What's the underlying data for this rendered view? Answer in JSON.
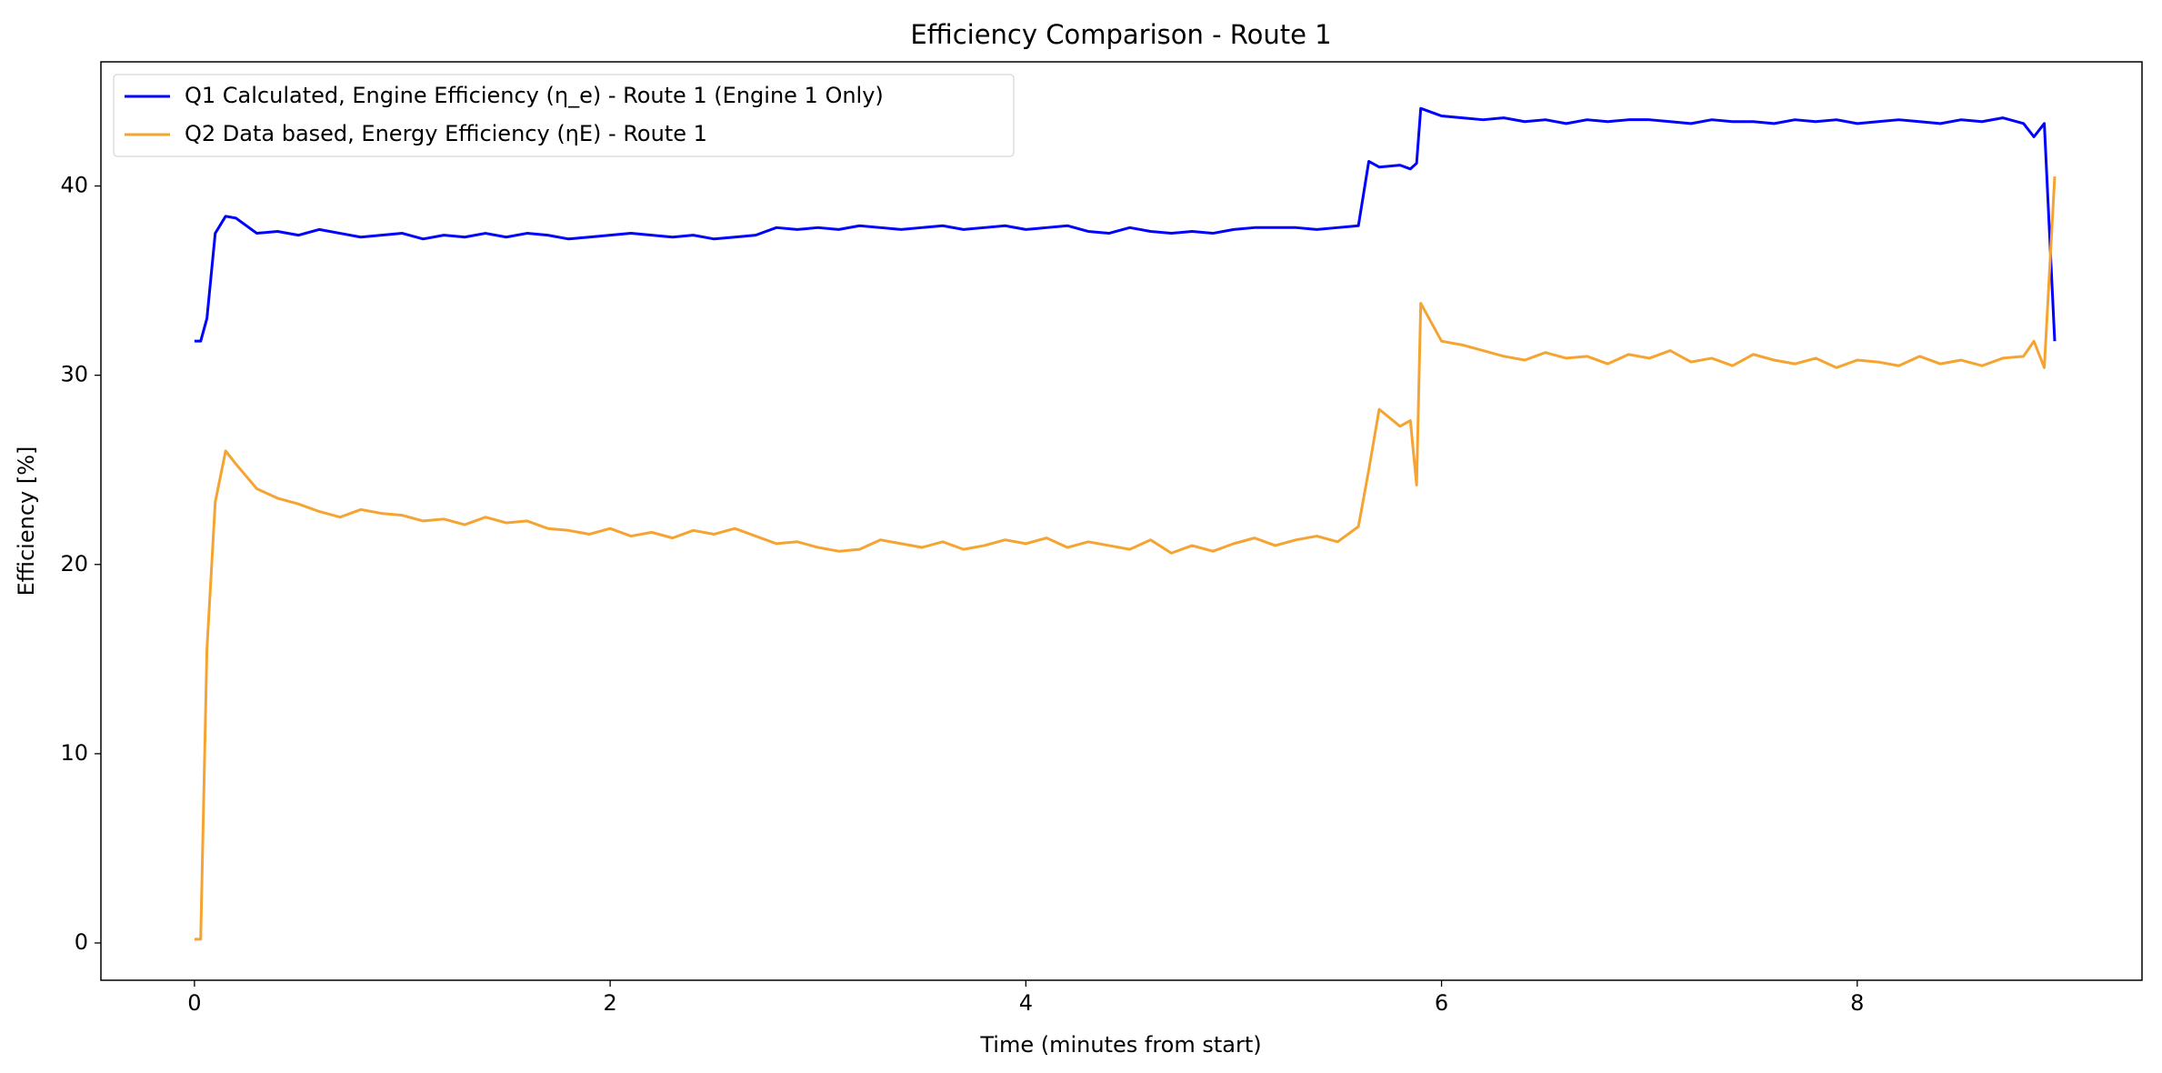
{
  "chart_data": {
    "type": "line",
    "title": "Efficiency Comparison - Route 1",
    "xlabel": "Time (minutes from start)",
    "ylabel": "Efficiency [%]",
    "x": [
      0,
      0.03,
      0.06,
      0.1,
      0.15,
      0.2,
      0.3,
      0.4,
      0.5,
      0.6,
      0.7,
      0.8,
      0.9,
      1.0,
      1.1,
      1.2,
      1.3,
      1.4,
      1.5,
      1.6,
      1.7,
      1.8,
      1.9,
      2.0,
      2.1,
      2.2,
      2.3,
      2.4,
      2.5,
      2.6,
      2.7,
      2.8,
      2.9,
      3.0,
      3.1,
      3.2,
      3.3,
      3.4,
      3.5,
      3.6,
      3.7,
      3.8,
      3.9,
      4.0,
      4.1,
      4.2,
      4.3,
      4.4,
      4.5,
      4.6,
      4.7,
      4.8,
      4.9,
      5.0,
      5.1,
      5.2,
      5.3,
      5.4,
      5.5,
      5.6,
      5.65,
      5.7,
      5.8,
      5.85,
      5.88,
      5.9,
      6.0,
      6.1,
      6.2,
      6.3,
      6.4,
      6.5,
      6.6,
      6.7,
      6.8,
      6.9,
      7.0,
      7.1,
      7.2,
      7.3,
      7.4,
      7.5,
      7.6,
      7.7,
      7.8,
      7.9,
      8.0,
      8.1,
      8.2,
      8.3,
      8.4,
      8.5,
      8.6,
      8.7,
      8.8,
      8.85,
      8.9,
      8.95
    ],
    "series": [
      {
        "name": "Q1 Calculated, Engine Efficiency (η_e) - Route 1 (Engine 1 Only)",
        "color": "#0000ff",
        "values": [
          31.8,
          31.8,
          33.0,
          37.5,
          38.4,
          38.3,
          37.5,
          37.6,
          37.4,
          37.7,
          37.5,
          37.3,
          37.4,
          37.5,
          37.2,
          37.4,
          37.3,
          37.5,
          37.3,
          37.5,
          37.4,
          37.2,
          37.3,
          37.4,
          37.5,
          37.4,
          37.3,
          37.4,
          37.2,
          37.3,
          37.4,
          37.8,
          37.7,
          37.8,
          37.7,
          37.9,
          37.8,
          37.7,
          37.8,
          37.9,
          37.7,
          37.8,
          37.9,
          37.7,
          37.8,
          37.9,
          37.6,
          37.5,
          37.8,
          37.6,
          37.5,
          37.6,
          37.5,
          37.7,
          37.8,
          37.8,
          37.8,
          37.7,
          37.8,
          37.9,
          41.3,
          41.0,
          41.1,
          40.9,
          41.2,
          44.1,
          43.7,
          43.6,
          43.5,
          43.6,
          43.4,
          43.5,
          43.3,
          43.5,
          43.4,
          43.5,
          43.5,
          43.4,
          43.3,
          43.5,
          43.4,
          43.4,
          43.3,
          43.5,
          43.4,
          43.5,
          43.3,
          43.4,
          43.5,
          43.4,
          43.3,
          43.5,
          43.4,
          43.6,
          43.3,
          42.6,
          43.3,
          31.8
        ]
      },
      {
        "name": "Q2 Data based, Energy Efficiency (ηE) - Route 1",
        "color": "#f5a432",
        "values": [
          0.2,
          0.2,
          15.5,
          23.3,
          26.0,
          25.3,
          24.0,
          23.5,
          23.2,
          22.8,
          22.5,
          22.9,
          22.7,
          22.6,
          22.3,
          22.4,
          22.1,
          22.5,
          22.2,
          22.3,
          21.9,
          21.8,
          21.6,
          21.9,
          21.5,
          21.7,
          21.4,
          21.8,
          21.6,
          21.9,
          21.5,
          21.1,
          21.2,
          20.9,
          20.7,
          20.8,
          21.3,
          21.1,
          20.9,
          21.2,
          20.8,
          21.0,
          21.3,
          21.1,
          21.4,
          20.9,
          21.2,
          21.0,
          20.8,
          21.3,
          20.6,
          21.0,
          20.7,
          21.1,
          21.4,
          21.0,
          21.3,
          21.5,
          21.2,
          22.0,
          25.0,
          28.2,
          27.3,
          27.6,
          24.2,
          33.8,
          31.8,
          31.6,
          31.3,
          31.0,
          30.8,
          31.2,
          30.9,
          31.0,
          30.6,
          31.1,
          30.9,
          31.3,
          30.7,
          30.9,
          30.5,
          31.1,
          30.8,
          30.6,
          30.9,
          30.4,
          30.8,
          30.7,
          30.5,
          31.0,
          30.6,
          30.8,
          30.5,
          30.9,
          31.0,
          31.8,
          30.4,
          40.5
        ]
      }
    ],
    "xlim": [
      -0.45,
      9.37
    ],
    "ylim": [
      -1.97,
      46.56
    ],
    "xticks": [
      0,
      2,
      4,
      6,
      8
    ],
    "yticks": [
      0,
      10,
      20,
      30,
      40
    ],
    "legend": "upper left",
    "grid": false
  }
}
